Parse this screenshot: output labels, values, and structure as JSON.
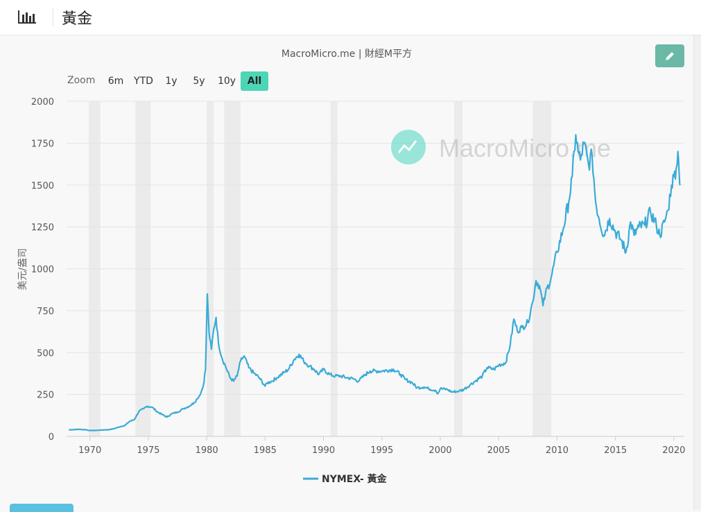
{
  "header": {
    "title": "黃金",
    "icon": "bar-chart-icon"
  },
  "credit": "MacroMicro.me | 財經M平方",
  "watermark": "MacroMicro.me",
  "zoom": {
    "label": "Zoom",
    "buttons": [
      "6m",
      "YTD",
      "1y",
      "5y",
      "10y",
      "All"
    ],
    "active": "All"
  },
  "colors": {
    "series": "#3aabd6",
    "accent": "#4dd6b5",
    "recession": "#ebebeb",
    "edit": "#6ab8a6"
  },
  "chart_data": {
    "type": "line",
    "title": "",
    "ylabel": "美元/盎司",
    "xlabel": "",
    "xlim": [
      1968.0,
      2020.9
    ],
    "ylim": [
      0,
      2000
    ],
    "yticks": [
      0,
      250,
      500,
      750,
      1000,
      1250,
      1500,
      1750,
      2000
    ],
    "xticks": [
      1970,
      1975,
      1980,
      1985,
      1990,
      1995,
      2000,
      2005,
      2010,
      2015,
      2020
    ],
    "grid": true,
    "legend": {
      "position": "bottom-center",
      "entries": [
        "NYMEX- 黃金"
      ]
    },
    "recessions": [
      [
        1969.9,
        1970.9
      ],
      [
        1973.9,
        1975.2
      ],
      [
        1980.0,
        1980.6
      ],
      [
        1981.5,
        1982.9
      ],
      [
        1990.6,
        1991.2
      ],
      [
        2001.2,
        2001.9
      ],
      [
        2007.9,
        2009.5
      ]
    ],
    "series": [
      {
        "name": "NYMEX- 黃金",
        "x": [
          1968.2,
          1969.0,
          1969.6,
          1970.0,
          1970.6,
          1971.0,
          1971.6,
          1972.0,
          1972.6,
          1973.0,
          1973.4,
          1973.8,
          1974.2,
          1974.6,
          1974.9,
          1975.3,
          1975.8,
          1976.2,
          1976.6,
          1977.0,
          1977.5,
          1978.0,
          1978.5,
          1978.9,
          1979.2,
          1979.5,
          1979.7,
          1979.9,
          1980.05,
          1980.2,
          1980.4,
          1980.6,
          1980.8,
          1981.0,
          1981.3,
          1981.6,
          1982.0,
          1982.3,
          1982.6,
          1982.9,
          1983.2,
          1983.6,
          1984.0,
          1984.5,
          1985.0,
          1985.2,
          1985.6,
          1986.0,
          1986.6,
          1987.0,
          1987.5,
          1987.9,
          1988.3,
          1988.8,
          1989.2,
          1989.6,
          1990.0,
          1990.5,
          1991.0,
          1991.5,
          1992.0,
          1992.5,
          1993.0,
          1993.6,
          1994.0,
          1995.0,
          1996.0,
          1996.6,
          1997.0,
          1997.6,
          1998.0,
          1998.6,
          1999.0,
          1999.6,
          1999.8,
          2000.0,
          2000.6,
          2001.0,
          2001.6,
          2002.0,
          2002.6,
          2003.0,
          2003.6,
          2004.0,
          2004.6,
          2005.0,
          2005.6,
          2006.0,
          2006.3,
          2006.6,
          2007.0,
          2007.5,
          2007.9,
          2008.2,
          2008.5,
          2008.8,
          2009.0,
          2009.5,
          2010.0,
          2010.5,
          2011.0,
          2011.3,
          2011.6,
          2011.8,
          2012.0,
          2012.3,
          2012.7,
          2013.0,
          2013.3,
          2013.6,
          2014.0,
          2014.5,
          2015.0,
          2015.5,
          2015.9,
          2016.3,
          2016.6,
          2017.0,
          2017.5,
          2018.0,
          2018.5,
          2018.8,
          2019.2,
          2019.5,
          2019.8,
          2020.0,
          2020.2,
          2020.35,
          2020.45,
          2020.55
        ],
        "y": [
          39,
          42,
          40,
          35,
          36,
          38,
          40,
          45,
          58,
          65,
          90,
          100,
          150,
          165,
          180,
          175,
          145,
          130,
          115,
          135,
          145,
          165,
          180,
          200,
          225,
          260,
          300,
          400,
          850,
          620,
          520,
          640,
          710,
          560,
          470,
          420,
          350,
          330,
          360,
          450,
          480,
          410,
          380,
          350,
          300,
          320,
          330,
          350,
          380,
          400,
          460,
          490,
          450,
          420,
          400,
          370,
          400,
          370,
          360,
          360,
          350,
          345,
          330,
          370,
          390,
          390,
          400,
          370,
          340,
          320,
          290,
          295,
          285,
          275,
          255,
          285,
          280,
          265,
          270,
          280,
          310,
          330,
          360,
          410,
          400,
          425,
          440,
          550,
          700,
          630,
          650,
          680,
          800,
          930,
          900,
          780,
          850,
          950,
          1100,
          1230,
          1400,
          1550,
          1800,
          1700,
          1650,
          1750,
          1620,
          1680,
          1400,
          1300,
          1200,
          1300,
          1220,
          1170,
          1100,
          1280,
          1200,
          1250,
          1260,
          1340,
          1260,
          1200,
          1280,
          1350,
          1500,
          1550,
          1600,
          1700,
          1580,
          1500
        ]
      }
    ]
  }
}
